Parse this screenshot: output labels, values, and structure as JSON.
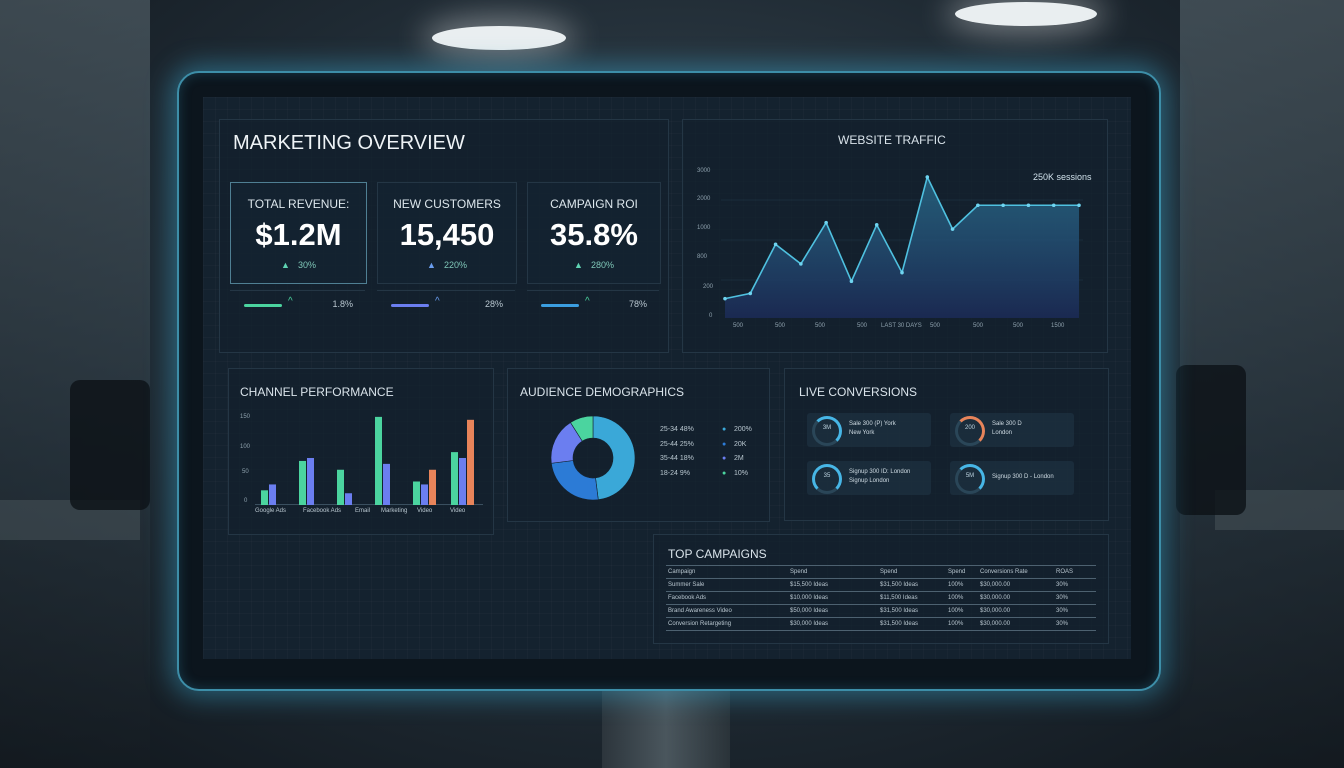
{
  "dashboard": {
    "title": "MARKETING OVERVIEW"
  },
  "kpis": [
    {
      "label": "TOTAL REVENUE:",
      "value": "$1.2M",
      "delta": "30%",
      "mini_value": "1.8%",
      "color": "#4bd49f"
    },
    {
      "label": "NEW CUSTOMERS",
      "value": "15,450",
      "delta": "220%",
      "mini_value": "28%",
      "color": "#6b7ef0"
    },
    {
      "label": "CAMPAIGN ROI",
      "value": "35.8%",
      "delta": "280%",
      "mini_value": "78%",
      "color": "#3b9ee0"
    }
  ],
  "traffic": {
    "title": "WEBSITE TRAFFIC",
    "callout": "250K sessions",
    "y_ticks": [
      "3000",
      "2000",
      "1000",
      "800",
      "200",
      "0"
    ],
    "x_ticks": [
      "500",
      "500",
      "500",
      "500",
      "LAST 30 DAYS",
      "500",
      "500",
      "500",
      "1500"
    ]
  },
  "channels": {
    "title": "CHANNEL PERFORMANCE",
    "y_ticks": [
      "150",
      "100",
      "50",
      "0"
    ],
    "x_ticks": [
      "Google Ads",
      "Facebook Ads",
      "Email",
      "Marketing",
      "Video",
      "Video"
    ]
  },
  "demographics": {
    "title": "AUDIENCE DEMOGRAPHICS",
    "rows": [
      {
        "label": "25-34 48%",
        "value": "200%"
      },
      {
        "label": "25-44 25%",
        "value": "20K"
      },
      {
        "label": "35-44 18%",
        "value": "2M"
      },
      {
        "label": "18-24 9%",
        "value": "10%"
      }
    ]
  },
  "conversions": {
    "title": "LIVE CONVERSIONS",
    "items": [
      {
        "ring": "3M",
        "line1": "Sale 300 (P) York",
        "line2": "New York"
      },
      {
        "ring": "200",
        "line1": "Sale 300 D",
        "line2": "London"
      },
      {
        "ring": "35",
        "line1": "Signup 300 ID: London",
        "line2": "Signup London"
      },
      {
        "ring": "5M",
        "line1": "Signup 300 D - London",
        "line2": ""
      }
    ]
  },
  "campaigns": {
    "title": "TOP CAMPAIGNS",
    "headers": [
      "Campaign",
      "Spend",
      "Spend",
      "Spend",
      "Conversions Rate",
      "ROAS"
    ],
    "rows": [
      [
        "Summer Sale",
        "$15,500 Ideas",
        "$31,500 Ideas",
        "100%",
        "$30,000.00",
        "30%"
      ],
      [
        "Facebook Ads",
        "$10,000 Ideas",
        "$11,500 Ideas",
        "100%",
        "$30,000.00",
        "30%"
      ],
      [
        "Brand Awareness Video",
        "$50,000 Ideas",
        "$31,500 Ideas",
        "100%",
        "$30,000.00",
        "30%"
      ],
      [
        "Conversion Retargeting",
        "$30,000 Ideas",
        "$31,500 Ideas",
        "100%",
        "$30,000.00",
        "30%"
      ]
    ]
  },
  "chart_data": [
    {
      "type": "area",
      "x": [
        1,
        2,
        3,
        4,
        5,
        6,
        7,
        8,
        9,
        10,
        11,
        12,
        13,
        14,
        15
      ],
      "y": [
        400,
        520,
        1650,
        1200,
        2150,
        800,
        2100,
        1000,
        3200,
        2000,
        2550,
        2550,
        2550,
        2550,
        2550
      ],
      "ylim": [
        0,
        3500
      ]
    },
    {
      "type": "bar",
      "categories": [
        "Google Ads",
        "Facebook Ads",
        "Email",
        "Marketing",
        "Video",
        "Video"
      ],
      "series": [
        {
          "values": [
            25,
            75,
            60,
            150,
            40,
            90
          ],
          "color": "#4bd49f"
        },
        {
          "values": [
            35,
            80,
            20,
            70,
            35,
            80
          ],
          "color": "#6b7ef0"
        },
        {
          "values": [
            0,
            0,
            0,
            0,
            60,
            145
          ],
          "color": "#e8845a"
        }
      ],
      "ylim": [
        0,
        160
      ]
    },
    {
      "type": "pie",
      "labels": [
        "25-34",
        "25-44",
        "35-44",
        "18-24"
      ],
      "values": [
        48,
        25,
        18,
        9
      ],
      "colors": [
        "#3aa8d8",
        "#2c7bd6",
        "#6b7ef0",
        "#4bd49f"
      ]
    }
  ]
}
